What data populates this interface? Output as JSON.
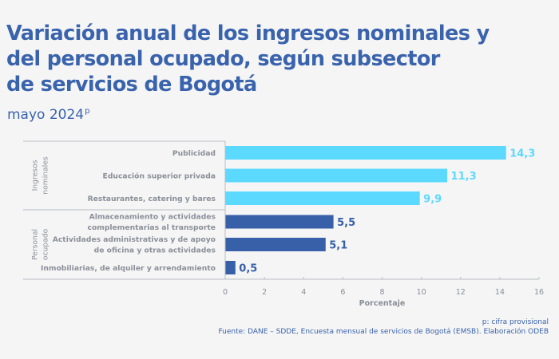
{
  "header": {
    "title_lines": [
      "Variación anual de los ingresos nominales y",
      "del personal ocupado, según subsector",
      "de servicios de Bogotá"
    ],
    "subtitle": "mayo 2024",
    "subtitle_sup": "p"
  },
  "footer": {
    "note": "p: cifra provisional",
    "source": "Fuente: DANE – SDDE, Encuesta mensual de servicios de Bogotá (EMSB). Elaboración ODEB"
  },
  "colors": {
    "title": "#3a63ad",
    "ingresos_bar": "#5cd9ff",
    "personal_bar": "#3760a8",
    "label_gray": "#8b8f98",
    "background": "#f5f5f5"
  },
  "chart_data": {
    "type": "bar",
    "orientation": "horizontal",
    "title": "Variación anual de los ingresos nominales y del personal ocupado, según subsector de servicios de Bogotá",
    "subtitle": "mayo 2024p",
    "xlabel": "Porcentaje",
    "ylabel": "",
    "xlim": [
      0,
      16
    ],
    "xticks": [
      0,
      2,
      4,
      6,
      8,
      10,
      12,
      14,
      16
    ],
    "grid": false,
    "legend": "none",
    "groups": [
      {
        "name_lines": [
          "Ingresos",
          "nominales"
        ],
        "color": "#5cd9ff",
        "bars": [
          {
            "label_lines": [
              "Publicidad"
            ],
            "value": 14.3,
            "value_label": "14,3"
          },
          {
            "label_lines": [
              "Educación superior privada"
            ],
            "value": 11.3,
            "value_label": "11,3"
          },
          {
            "label_lines": [
              "Restaurantes, catering y bares"
            ],
            "value": 9.9,
            "value_label": "9,9"
          }
        ]
      },
      {
        "name_lines": [
          "Personal",
          "ocupado"
        ],
        "color": "#3760a8",
        "bars": [
          {
            "label_lines": [
              "Almacenamiento y actividades",
              "complementarias al transporte"
            ],
            "value": 5.5,
            "value_label": "5,5"
          },
          {
            "label_lines": [
              "Actividades administrativas y de apoyo",
              "de oficina y otras actividades"
            ],
            "value": 5.1,
            "value_label": "5,1"
          },
          {
            "label_lines": [
              "Inmobiliarias, de alquiler y arrendamiento"
            ],
            "value": 0.5,
            "value_label": "0,5"
          }
        ]
      }
    ]
  }
}
